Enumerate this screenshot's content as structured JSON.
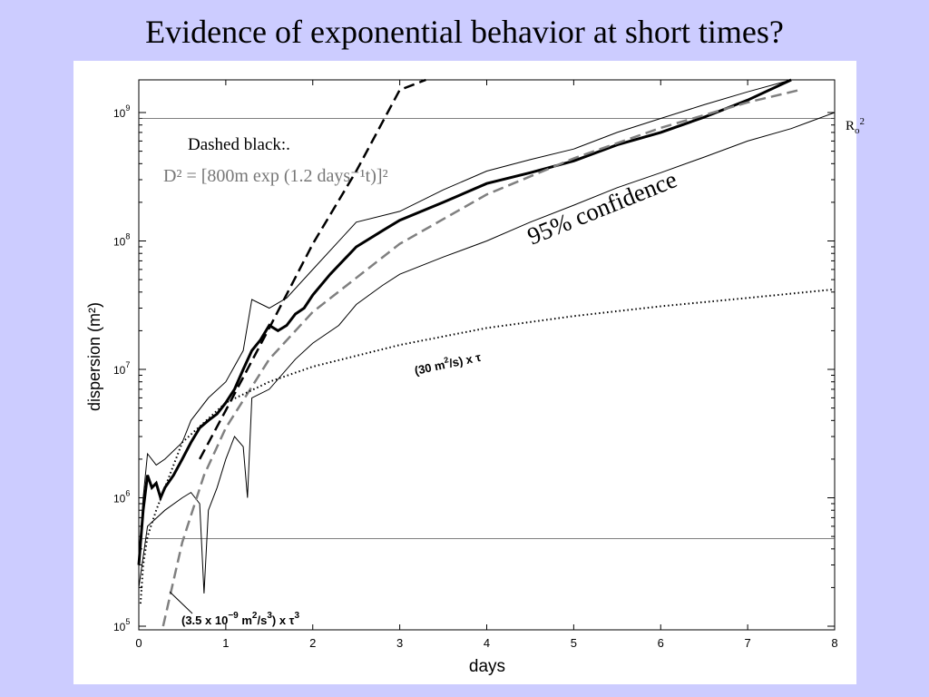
{
  "slide": {
    "title": "Evidence of exponential behavior at short times?"
  },
  "chart_data": {
    "type": "line",
    "xlabel": "days",
    "ylabel": "dispersion (m²)",
    "xlim": [
      0,
      8
    ],
    "ylim": [
      100000,
      2000000000
    ],
    "yscale": "log",
    "grid": false,
    "x_ticks": [
      "0",
      "1",
      "2",
      "3",
      "4",
      "5",
      "6",
      "7",
      "8"
    ],
    "y_ticks": [
      {
        "base": "10",
        "exp": "5"
      },
      {
        "base": "10",
        "exp": "6"
      },
      {
        "base": "10",
        "exp": "7"
      },
      {
        "base": "10",
        "exp": "8"
      },
      {
        "base": "10",
        "exp": "9"
      }
    ],
    "reference_lines": [
      {
        "label_main": "R",
        "label_sub": "o",
        "label_sup": "2",
        "value": 900000000
      },
      {
        "label": "",
        "value": 480000
      }
    ],
    "series": [
      {
        "style": "thick-black",
        "x": [
          0,
          0.05,
          0.1,
          0.15,
          0.2,
          0.25,
          0.3,
          0.4,
          0.5,
          0.6,
          0.7,
          0.8,
          0.9,
          1.0,
          1.1,
          1.2,
          1.3,
          1.4,
          1.5,
          1.6,
          1.7,
          1.8,
          1.9,
          2.0,
          2.2,
          2.5,
          2.8,
          3.0,
          3.5,
          4.0,
          4.5,
          5.0,
          5.5,
          6.0,
          6.5,
          7.0,
          7.5
        ],
        "y": [
          300000,
          800000,
          1500000,
          1200000,
          1300000,
          1000000,
          1200000,
          1500000,
          2000000,
          2700000,
          3500000,
          4000000,
          4500000,
          5500000,
          7000000,
          10000000,
          14000000,
          17000000,
          22000000,
          20000000,
          22000000,
          27000000,
          30000000,
          38000000,
          55000000,
          90000000,
          120000000,
          145000000,
          200000000,
          280000000,
          340000000,
          420000000,
          560000000,
          700000000,
          920000000,
          1250000000,
          1800000000
        ]
      },
      {
        "style": "thin-upper",
        "x": [
          0,
          0.05,
          0.1,
          0.2,
          0.3,
          0.5,
          0.6,
          0.8,
          1.0,
          1.2,
          1.3,
          1.5,
          1.7,
          2.0,
          2.5,
          3.0,
          3.5,
          4.0,
          4.5,
          5.0,
          5.5,
          6.0,
          6.5,
          7.0,
          7.5
        ],
        "y": [
          300000,
          1000000,
          2200000,
          1800000,
          2000000,
          2700000,
          4000000,
          6000000,
          8000000,
          14000000,
          35000000,
          30000000,
          36000000,
          60000000,
          140000000,
          170000000,
          250000000,
          350000000,
          430000000,
          520000000,
          700000000,
          900000000,
          1150000000,
          1450000000,
          2000000000
        ]
      },
      {
        "style": "thin-lower",
        "x": [
          0,
          0.1,
          0.3,
          0.5,
          0.6,
          0.7,
          0.75,
          0.8,
          0.9,
          1.0,
          1.1,
          1.2,
          1.25,
          1.3,
          1.5,
          1.8,
          2.0,
          2.3,
          2.5,
          2.8,
          3.0,
          3.5,
          4.0,
          4.5,
          5.0,
          5.5,
          6.0,
          6.5,
          7.0,
          7.5,
          8.0
        ],
        "y": [
          200000,
          600000,
          800000,
          1000000,
          1100000,
          900000,
          180000,
          800000,
          1200000,
          2000000,
          3000000,
          2500000,
          1000000,
          6000000,
          7000000,
          12000000,
          16000000,
          22000000,
          32000000,
          45000000,
          55000000,
          75000000,
          100000000,
          140000000,
          190000000,
          260000000,
          340000000,
          450000000,
          600000000,
          750000000,
          1000000000
        ]
      },
      {
        "style": "dashed-black",
        "x": [
          0.7,
          1.0,
          1.5,
          2.0,
          2.5,
          3.0,
          3.3
        ],
        "y": [
          2000000,
          4800000,
          21000000,
          95000000,
          350000000,
          1500000000,
          2000000000
        ]
      },
      {
        "style": "dashed-gray",
        "x": [
          0.28,
          0.5,
          0.75,
          1.0,
          1.5,
          2.0,
          3.0,
          4.0,
          5.0,
          6.0,
          7.0,
          7.6
        ],
        "y": [
          100000,
          450000,
          1500000,
          3500000,
          12000000,
          28000000,
          95000000,
          230000000,
          440000000,
          760000000,
          1200000000,
          1500000000
        ]
      },
      {
        "style": "dotted",
        "x": [
          0.02,
          0.05,
          0.1,
          0.2,
          0.5,
          1.0,
          1.5,
          2.0,
          3.0,
          4.0,
          5.0,
          6.0,
          7.0,
          8.0
        ],
        "y": [
          150000,
          300000,
          500000,
          800000,
          2700000,
          5500000,
          8000000,
          10500000,
          15500000,
          21000000,
          26000000,
          31000000,
          36000000,
          42000000
        ]
      }
    ],
    "annotations": {
      "dashed_black_label": "Dashed black:.",
      "formula": "D² = [800m exp (1.2 days⁻¹t)]²",
      "confidence": "95% confidence",
      "linear_main": "(30 m",
      "linear_sup": "2",
      "linear_rest": "/s) x τ",
      "cubic_a": "(3.5 x 10",
      "cubic_sup1": "−9",
      "cubic_b": " m",
      "cubic_sup2": "2",
      "cubic_c": "/s",
      "cubic_sup3": "3",
      "cubic_d": ") x τ",
      "cubic_sup4": "3"
    }
  }
}
